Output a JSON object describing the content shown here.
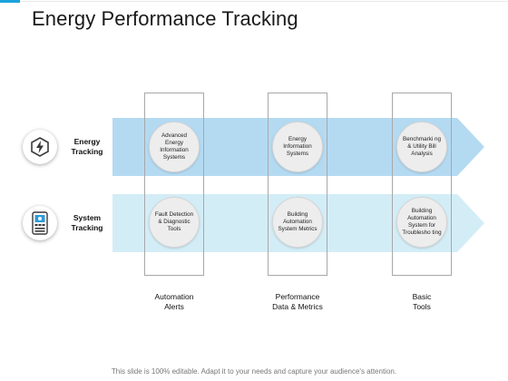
{
  "title": "Energy Performance Tracking",
  "rows": [
    {
      "label_line1": "Energy",
      "label_line2": "Tracking",
      "icon": "energy-bolt-icon",
      "color": "#b4daf2"
    },
    {
      "label_line1": "System",
      "label_line2": "Tracking",
      "icon": "device-monitor-icon",
      "color": "#d3edf7"
    }
  ],
  "columns": [
    {
      "label_line1": "Automation",
      "label_line2": "Alerts"
    },
    {
      "label_line1": "Performance",
      "label_line2": "Data & Metrics"
    },
    {
      "label_line1": "Basic",
      "label_line2": "Tools"
    }
  ],
  "cells": [
    [
      "Advanced Energy Information Systems",
      "Energy Information Systems",
      "Benchmarki ng & Utility Bill Analysis"
    ],
    [
      "Fault Detection & Diagnostic Tools",
      "Building Automation System Metrics",
      "Building Automation System for Troublesho ting"
    ]
  ],
  "footer": "This slide is 100% editable. Adapt it to your needs and capture your audience's attention.",
  "colors": {
    "accent": "#1aa3dc",
    "arrow_top": "#b4daf2",
    "arrow_bottom": "#d3edf7"
  }
}
